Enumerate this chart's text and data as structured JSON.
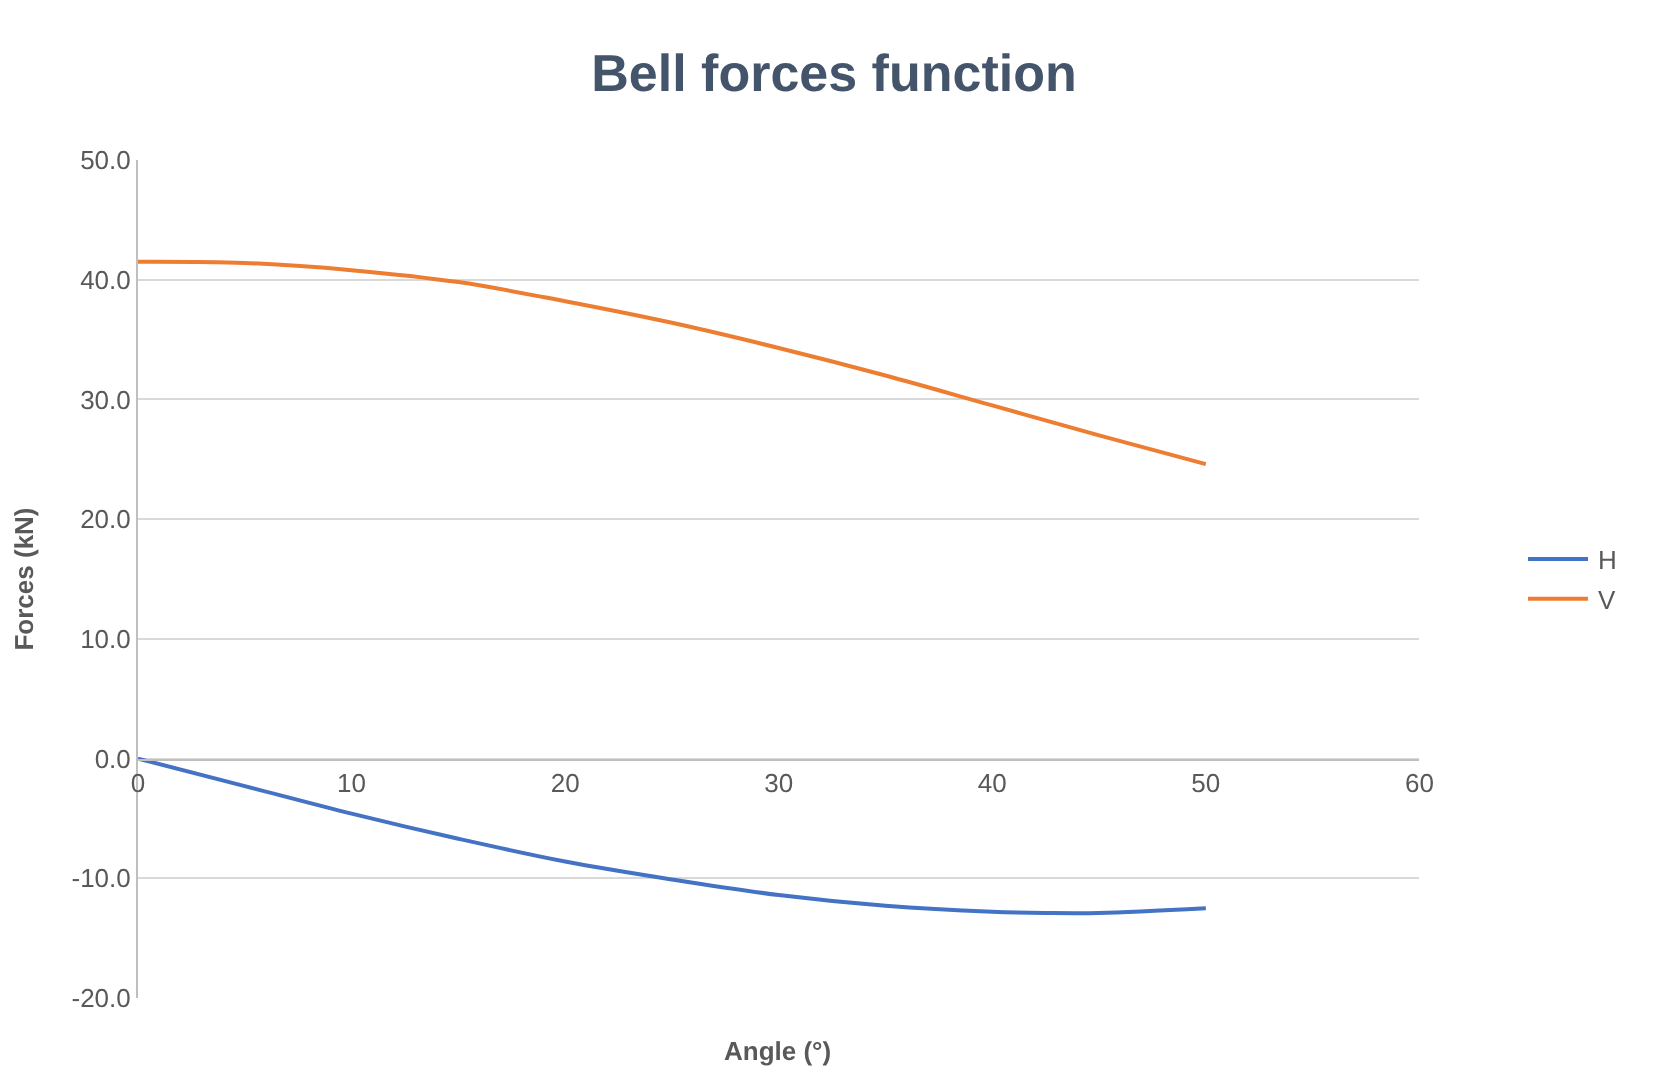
{
  "chart_data": {
    "type": "line",
    "title": "Bell forces function",
    "xlabel": "Angle (°)",
    "ylabel": "Forces (kN)",
    "xlim": [
      0,
      60
    ],
    "xticks": [
      0,
      10,
      20,
      30,
      40,
      50,
      60
    ],
    "ylim": [
      -20,
      50
    ],
    "yticks": [
      {
        "value": -20,
        "label": "-20.0"
      },
      {
        "value": -10,
        "label": "-10.0"
      },
      {
        "value": 0,
        "label": "0.0"
      },
      {
        "value": 10,
        "label": "10.0"
      },
      {
        "value": 20,
        "label": "20.0"
      },
      {
        "value": 30,
        "label": "30.0"
      },
      {
        "value": 40,
        "label": "40.0"
      },
      {
        "value": 50,
        "label": "50.0"
      }
    ],
    "grid": "y",
    "legend": "right",
    "marker": "none",
    "line_style": "solid",
    "series": [
      {
        "name": "H",
        "color": "#4472c4",
        "x": [
          0,
          5,
          10,
          15,
          20,
          25,
          30,
          35,
          40,
          42.5,
          45,
          50
        ],
        "values": [
          0,
          -2.3,
          -4.6,
          -6.7,
          -8.6,
          -10.1,
          -11.4,
          -12.3,
          -12.8,
          -12.9,
          -12.9,
          -12.5
        ]
      },
      {
        "name": "V",
        "color": "#ed7d31",
        "x": [
          0,
          5,
          10,
          15,
          20,
          25,
          30,
          35,
          40,
          45,
          50
        ],
        "values": [
          41.5,
          41.4,
          40.8,
          39.8,
          38.2,
          36.4,
          34.3,
          32.0,
          29.5,
          27.0,
          24.6
        ]
      }
    ]
  }
}
